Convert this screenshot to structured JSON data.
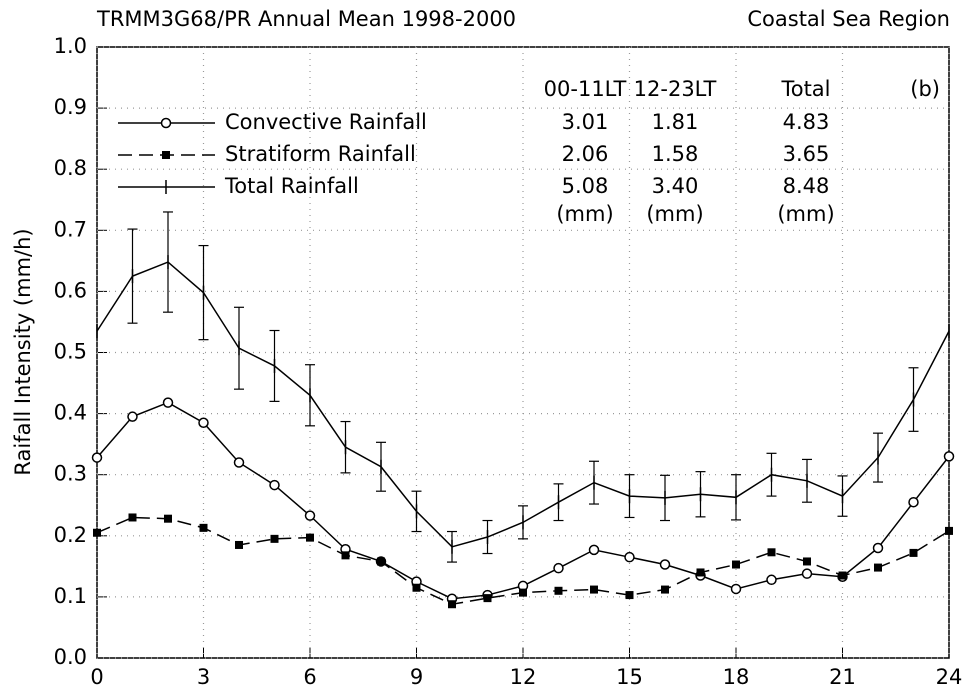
{
  "chart_data": {
    "type": "line",
    "title": "TRMM3G68/PR  Annual Mean  1998-2000",
    "subtitle": "Coastal Sea Region",
    "panel_label": "(b)",
    "y_label": "Raifall Intensity (mm/h)",
    "x": [
      0,
      1,
      2,
      3,
      4,
      5,
      6,
      7,
      8,
      9,
      10,
      11,
      12,
      13,
      14,
      15,
      16,
      17,
      18,
      19,
      20,
      21,
      22,
      23,
      24
    ],
    "xlim": [
      0,
      24
    ],
    "xticks": [
      0,
      3,
      6,
      9,
      12,
      15,
      18,
      21,
      24
    ],
    "ylim": [
      0,
      1
    ],
    "yticks": [
      {
        "value": 0,
        "label": "0.0"
      },
      0.1,
      0.2,
      0.3,
      0.4,
      0.5,
      0.6,
      0.7,
      0.8,
      0.9,
      {
        "value": 1,
        "label": "1.0"
      }
    ],
    "grid": true,
    "table_columns": [
      "00-11LT",
      "12-23LT",
      "Total"
    ],
    "table_units": [
      "(mm)",
      "(mm)",
      "(mm)"
    ],
    "series": [
      {
        "name": "Convective Rainfall",
        "color": "#000000",
        "marker": "circle",
        "dash": false,
        "values": [
          0.328,
          0.395,
          0.418,
          0.385,
          0.32,
          0.283,
          0.233,
          0.178,
          0.158,
          0.125,
          0.097,
          0.103,
          0.118,
          0.147,
          0.177,
          0.165,
          0.153,
          0.135,
          0.113,
          0.128,
          0.138,
          0.133,
          0.18,
          0.255,
          0.33
        ],
        "table_values": [
          "3.01",
          "1.81",
          "4.83"
        ]
      },
      {
        "name": "Stratiform Rainfall",
        "color": "#000000",
        "marker": "square",
        "dash": true,
        "values": [
          0.205,
          0.23,
          0.228,
          0.213,
          0.185,
          0.195,
          0.197,
          0.168,
          0.158,
          0.115,
          0.088,
          0.098,
          0.107,
          0.11,
          0.112,
          0.103,
          0.112,
          0.14,
          0.153,
          0.173,
          0.158,
          0.135,
          0.148,
          0.172,
          0.208
        ],
        "table_values": [
          "2.06",
          "1.58",
          "3.65"
        ]
      },
      {
        "name": "Total Rainfall",
        "color": "#000000",
        "marker": "tick",
        "dash": false,
        "values": [
          0.535,
          0.625,
          0.648,
          0.598,
          0.507,
          0.478,
          0.43,
          0.345,
          0.313,
          0.24,
          0.182,
          0.198,
          0.222,
          0.255,
          0.287,
          0.265,
          0.262,
          0.268,
          0.263,
          0.3,
          0.29,
          0.265,
          0.328,
          0.423,
          0.535
        ],
        "errors": [
          null,
          0.077,
          0.082,
          0.077,
          0.067,
          0.058,
          0.05,
          0.042,
          0.04,
          0.033,
          0.025,
          0.027,
          0.027,
          0.03,
          0.035,
          0.035,
          0.037,
          0.037,
          0.037,
          0.035,
          0.035,
          0.033,
          0.04,
          0.052,
          null
        ],
        "table_values": [
          "5.08",
          "3.40",
          "8.48"
        ]
      }
    ]
  }
}
